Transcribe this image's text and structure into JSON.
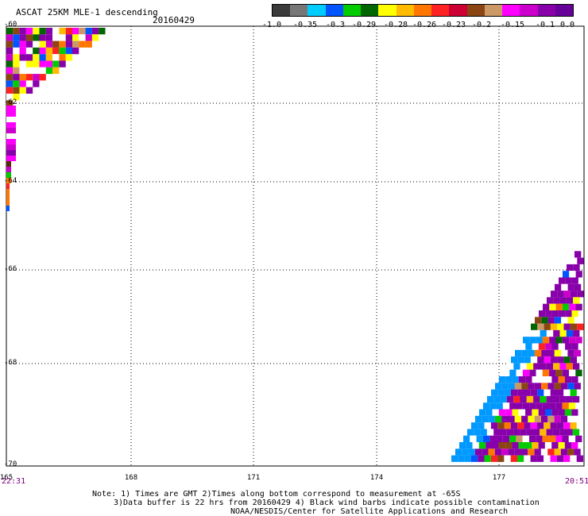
{
  "header": {
    "title": "ASCAT 25KM MLE-1 descending",
    "date": "20160429"
  },
  "colorbar": {
    "colors": [
      "#3b3b3b",
      "#777777",
      "#00ccff",
      "#0055ff",
      "#00cc00",
      "#006600",
      "#ffff00",
      "#ffbb00",
      "#ff7700",
      "#ff2222",
      "#cc0033",
      "#8b4513",
      "#cc9966",
      "#ff00ff",
      "#cc00cc",
      "#8800aa",
      "#660099"
    ],
    "labels": [
      "-1.0",
      "-0.35",
      "-0.3",
      "-0.29",
      "-0.28",
      "-0.26",
      "-0.23",
      "-0.2",
      "-0.15",
      "-0.1",
      "0.0"
    ]
  },
  "axes": {
    "lat_labels": [
      "-60",
      "-62",
      "-64",
      "-66",
      "-68",
      "-70"
    ],
    "lon_labels": [
      "165",
      "168",
      "171",
      "174",
      "177"
    ],
    "time_left": "22:31",
    "time_right": "20:51"
  },
  "notes": {
    "line1": "Note: 1) Times are GMT 2)Times along bottom correspond to measurement at -65S",
    "line2": "3)Data buffer is 22 hrs from 20160429 4) Black wind barbs indicate possible contamination",
    "line3": "NOAA/NESDIS/Center for Satellite Applications and Research"
  },
  "map_data": {
    "lon_range": [
      165,
      180
    ],
    "lat_range": [
      -70,
      -60
    ],
    "swath_colors": [
      "#8800aa",
      "#8800aa",
      "#ff00ff",
      "#00ccff",
      "#ffffff",
      "#ff7700",
      "#ff2222",
      "#ffff00",
      "#006600",
      "#8b4513",
      "#ffbb00",
      "#0055ff",
      "#cc00cc",
      "#8800aa",
      "#ffffff"
    ]
  }
}
